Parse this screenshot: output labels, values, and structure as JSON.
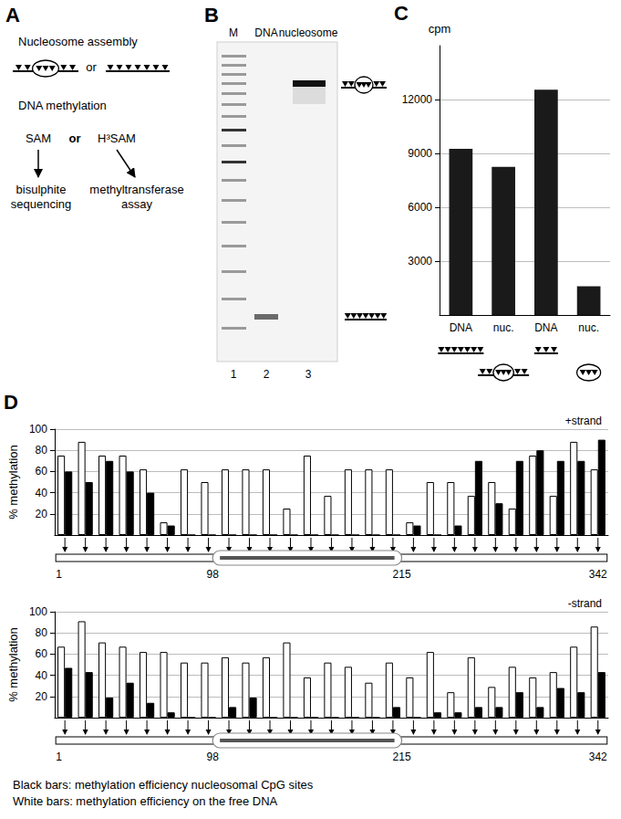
{
  "panel_labels": [
    "A",
    "B",
    "C",
    "D"
  ],
  "panel_a": {
    "assembly": "Nucleosome assembly",
    "assembly_or": "or",
    "methylation": "DNA methylation",
    "reagents": [
      "SAM",
      "H³SAM"
    ],
    "reagent_or": "or",
    "readouts": [
      "bisulphite sequencing",
      "methyltransferase assay"
    ]
  },
  "panel_b": {
    "lanes": [
      "M",
      "DNA",
      "nucleosome"
    ],
    "lane_numbers": [
      1,
      2,
      3
    ]
  },
  "chart_data": [
    {
      "type": "bar",
      "ylabel": "cpm",
      "categories": [
        "DNA",
        "nuc.",
        "DNA",
        "nuc."
      ],
      "values": [
        9250,
        8250,
        12550,
        1600
      ],
      "color": "#1a1a1a",
      "ylim": [
        0,
        15000
      ],
      "yticks": [
        3000,
        6000,
        9000,
        12000
      ],
      "grid": true
    },
    {
      "type": "bar",
      "title": "+strand",
      "ylabel": "% methylation",
      "categories": [
        null,
        null,
        null,
        null,
        null,
        null,
        null,
        null,
        null,
        null,
        null,
        null,
        null,
        null,
        null,
        null,
        null,
        null,
        null,
        null,
        null,
        null,
        null,
        null,
        null,
        null,
        null
      ],
      "series": [
        {
          "color": "#ffffff",
          "values": [
            75,
            88,
            75,
            75,
            62,
            12,
            62,
            50,
            62,
            62,
            62,
            25,
            75,
            37,
            62,
            62,
            62,
            12,
            50,
            50,
            37,
            50,
            25,
            75,
            37,
            88,
            62
          ]
        },
        {
          "color": "#000000",
          "values": [
            60,
            50,
            70,
            60,
            40,
            9,
            0,
            0,
            0,
            0,
            0,
            0,
            0,
            0,
            0,
            0,
            0,
            9,
            0,
            9,
            70,
            30,
            70,
            80,
            70,
            70,
            90
          ]
        }
      ],
      "ylim": [
        0,
        100
      ],
      "yticks": [
        20,
        40,
        60,
        80,
        100
      ],
      "grid": true
    },
    {
      "type": "bar",
      "title": "-strand",
      "ylabel": "% methylation",
      "categories": [
        null,
        null,
        null,
        null,
        null,
        null,
        null,
        null,
        null,
        null,
        null,
        null,
        null,
        null,
        null,
        null,
        null,
        null,
        null,
        null,
        null,
        null,
        null,
        null,
        null,
        null,
        null
      ],
      "series": [
        {
          "color": "#ffffff",
          "values": [
            67,
            91,
            71,
            67,
            62,
            62,
            52,
            52,
            57,
            52,
            57,
            71,
            38,
            52,
            48,
            33,
            52,
            38,
            62,
            24,
            57,
            29,
            48,
            38,
            43,
            67,
            86
          ]
        },
        {
          "color": "#000000",
          "values": [
            47,
            43,
            19,
            33,
            14,
            5,
            0,
            0,
            10,
            19,
            0,
            0,
            0,
            0,
            0,
            0,
            10,
            0,
            5,
            5,
            10,
            10,
            24,
            10,
            28,
            24,
            43
          ]
        }
      ],
      "ylim": [
        0,
        100
      ],
      "yticks": [
        20,
        40,
        60,
        80,
        100
      ],
      "grid": true
    }
  ],
  "dna_map": {
    "positions": [
      1,
      98,
      215,
      342
    ]
  },
  "caption": [
    "Black bars: methylation efficiency nucleosomal CpG sites",
    "White bars: methylation efficiency on the free DNA"
  ]
}
